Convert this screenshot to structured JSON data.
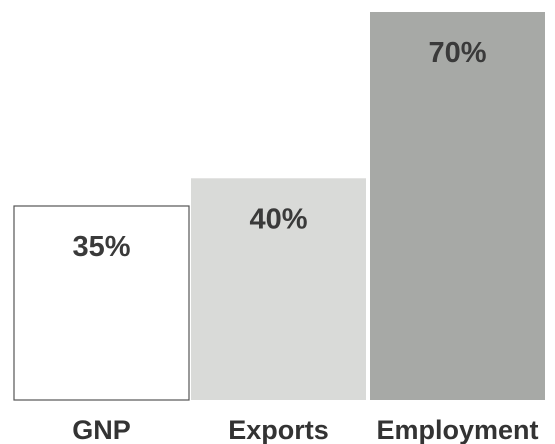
{
  "chart_data": {
    "type": "bar",
    "categories": [
      "GNP",
      "Exports",
      "Employment"
    ],
    "values": [
      35,
      40,
      70
    ],
    "value_labels": [
      "35%",
      "40%",
      "70%"
    ],
    "ylim": [
      0,
      70
    ],
    "grid": false,
    "legend": "none",
    "colors": {
      "GNP": "#ffffff",
      "Exports": "#d9dad8",
      "Employment": "#a7a9a6",
      "bar_outline": "#555555",
      "label_text": "#333333"
    }
  }
}
